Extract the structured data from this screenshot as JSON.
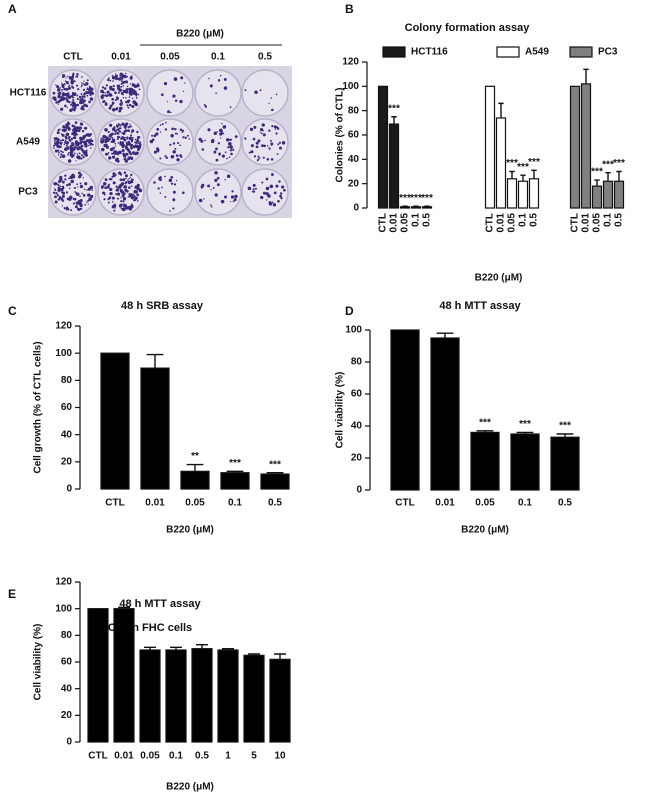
{
  "image_panel": {
    "panel": "A",
    "title": "B220 (μM)",
    "columns": [
      "CTL",
      "0.01",
      "0.05",
      "0.1",
      "0.5"
    ],
    "rows": [
      "HCT116",
      "A549",
      "PC3"
    ]
  },
  "chart_data": [
    {
      "type": "grouped_bar",
      "panel": "B",
      "title": "Colony formation assay",
      "y_label": "Colonies (% of CTL)",
      "x_label": "B220 (μM)",
      "categories": [
        "CTL",
        "0.01",
        "0.05",
        "0.1",
        "0.5"
      ],
      "series": [
        {
          "name": "HCT116",
          "color": "#1a1a1a",
          "values": [
            100,
            69,
            1,
            1,
            1
          ],
          "errors": [
            0,
            6,
            0.5,
            0.5,
            0.5
          ],
          "annotations": [
            null,
            "***",
            "***",
            "***",
            "***"
          ]
        },
        {
          "name": "A549",
          "color": "#ffffff",
          "values": [
            100,
            74,
            24,
            22,
            24
          ],
          "errors": [
            0,
            12,
            6,
            5,
            7
          ],
          "annotations": [
            null,
            null,
            "***",
            "***",
            "***"
          ]
        },
        {
          "name": "PC3",
          "color": "#808080",
          "values": [
            100,
            102,
            18,
            22,
            22
          ],
          "errors": [
            0,
            12,
            5,
            7,
            8
          ],
          "annotations": [
            null,
            null,
            "***",
            "***",
            "***"
          ]
        }
      ],
      "ylim": [
        0,
        120
      ],
      "yticks": [
        0,
        20,
        40,
        60,
        80,
        100,
        120
      ]
    },
    {
      "type": "bar",
      "panel": "C",
      "title": "48 h SRB assay",
      "y_label": "Cell growth (% of CTL cells)",
      "x_label": "B220 (μM)",
      "categories": [
        "CTL",
        "0.01",
        "0.05",
        "0.1",
        "0.5"
      ],
      "color": "#000000",
      "values": [
        100,
        89,
        13,
        12,
        11
      ],
      "errors": [
        0,
        10,
        5,
        1,
        1
      ],
      "annotations": [
        null,
        null,
        "**",
        "***",
        "***"
      ],
      "ylim": [
        0,
        120
      ],
      "yticks": [
        0,
        20,
        40,
        60,
        80,
        100,
        120
      ]
    },
    {
      "type": "bar",
      "panel": "D",
      "title": "48 h MTT assay",
      "y_label": "Cell viability (%)",
      "x_label": "B220 (μM)",
      "categories": [
        "CTL",
        "0.01",
        "0.05",
        "0.1",
        "0.5"
      ],
      "color": "#000000",
      "values": [
        100,
        95,
        36,
        35,
        33
      ],
      "errors": [
        0,
        3,
        1,
        1,
        2
      ],
      "annotations": [
        null,
        null,
        "***",
        "***",
        "***"
      ],
      "ylim": [
        0,
        100
      ],
      "yticks": [
        0,
        20,
        40,
        60,
        80,
        100
      ]
    },
    {
      "type": "bar",
      "panel": "E",
      "title": "48 h MTT assay",
      "subtitle": "Colon FHC cells",
      "y_label": "Cell viability (%)",
      "x_label": "B220 (μM)",
      "categories": [
        "CTL",
        "0.01",
        "0.05",
        "0.1",
        "0.5",
        "1",
        "5",
        "10"
      ],
      "color": "#000000",
      "values": [
        100,
        100,
        69,
        69,
        70,
        69,
        65,
        62
      ],
      "errors": [
        0,
        1,
        2,
        2,
        3,
        1,
        1,
        4
      ],
      "ylim": [
        0,
        120
      ],
      "yticks": [
        0,
        20,
        40,
        60,
        80,
        100,
        120
      ]
    }
  ]
}
